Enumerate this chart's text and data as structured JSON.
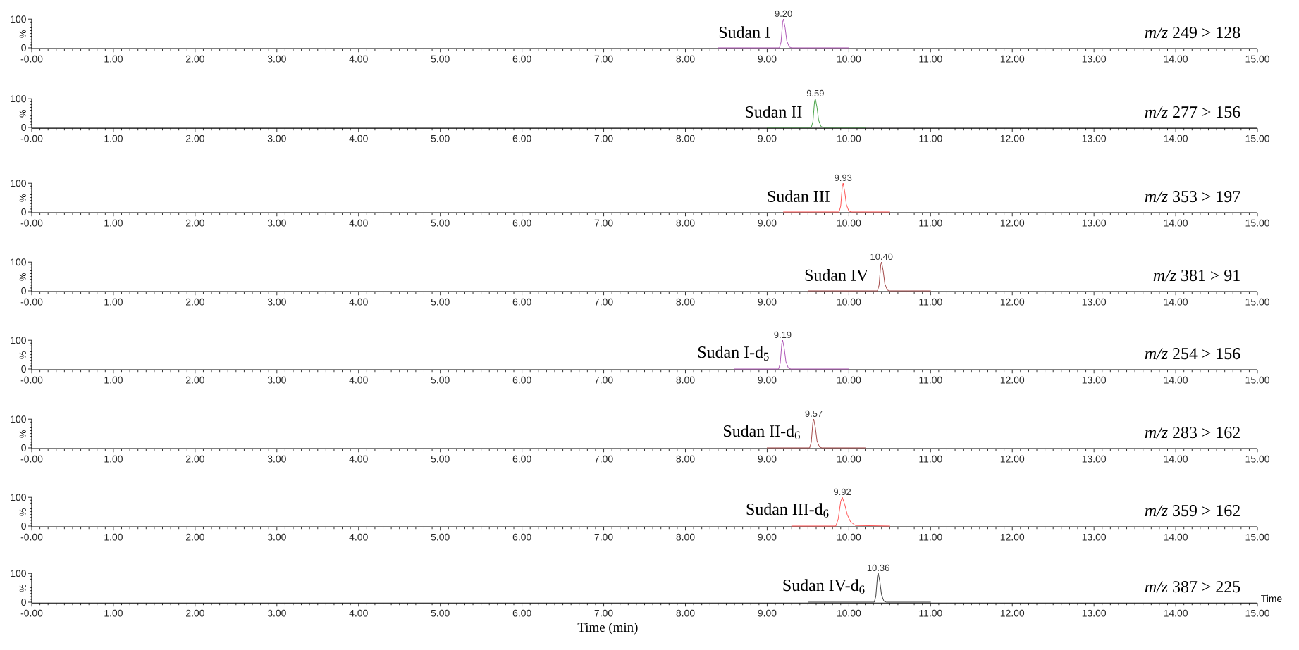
{
  "chart_data": [
    {
      "type": "line",
      "color": "#9b2fa5",
      "x": [
        8.4,
        9.15,
        9.17,
        9.19,
        9.2,
        9.22,
        9.24,
        9.27,
        9.3,
        10.0
      ],
      "values": [
        0,
        0,
        20,
        90,
        100,
        70,
        25,
        3,
        0,
        0
      ],
      "xlim": [
        0,
        15
      ],
      "ylim": [
        -3,
        100
      ],
      "ylabel": "%",
      "yticks": [
        0,
        100
      ],
      "xticks": [
        {
          "value": 0,
          "label": "-0.00"
        },
        {
          "value": 1,
          "label": "1.00"
        },
        {
          "value": 2,
          "label": "2.00"
        },
        {
          "value": 3,
          "label": "3.00"
        },
        {
          "value": 4,
          "label": "4.00"
        },
        {
          "value": 5,
          "label": "5.00"
        },
        {
          "value": 6,
          "label": "6.00"
        },
        {
          "value": 7,
          "label": "7.00"
        },
        {
          "value": 8,
          "label": "8.00"
        },
        {
          "value": 9,
          "label": "9.00"
        },
        {
          "value": 10,
          "label": "10.00"
        },
        {
          "value": 11,
          "label": "11.00"
        },
        {
          "value": 12,
          "label": "12.00"
        },
        {
          "value": 13,
          "label": "13.00"
        },
        {
          "value": 14,
          "label": "14.00"
        },
        {
          "value": 15,
          "label": "15.00"
        }
      ],
      "annotations": [
        {
          "text": "9.20",
          "x": 9.2,
          "y": 100
        },
        "Sudan I",
        "*m/z* 249 > 128"
      ]
    },
    {
      "type": "line",
      "color": "#1f8f1f",
      "x": [
        9.0,
        9.54,
        9.56,
        9.58,
        9.59,
        9.61,
        9.63,
        9.66,
        9.69,
        10.2
      ],
      "values": [
        0,
        0,
        20,
        90,
        100,
        70,
        25,
        3,
        0,
        0
      ],
      "xlim": [
        0,
        15
      ],
      "ylim": [
        -3,
        100
      ],
      "ylabel": "%",
      "yticks": [
        0,
        100
      ],
      "xticks": [
        {
          "value": 0,
          "label": "-0.00"
        },
        {
          "value": 1,
          "label": "1.00"
        },
        {
          "value": 2,
          "label": "2.00"
        },
        {
          "value": 3,
          "label": "3.00"
        },
        {
          "value": 4,
          "label": "4.00"
        },
        {
          "value": 5,
          "label": "5.00"
        },
        {
          "value": 6,
          "label": "6.00"
        },
        {
          "value": 7,
          "label": "7.00"
        },
        {
          "value": 8,
          "label": "8.00"
        },
        {
          "value": 9,
          "label": "9.00"
        },
        {
          "value": 10,
          "label": "10.00"
        },
        {
          "value": 11,
          "label": "11.00"
        },
        {
          "value": 12,
          "label": "12.00"
        },
        {
          "value": 13,
          "label": "13.00"
        },
        {
          "value": 14,
          "label": "14.00"
        },
        {
          "value": 15,
          "label": "15.00"
        }
      ],
      "annotations": [
        {
          "text": "9.59",
          "x": 9.59,
          "y": 100
        },
        "Sudan II",
        "*m/z* 277 > 156"
      ]
    },
    {
      "type": "line",
      "color": "#ff2a2a",
      "x": [
        9.2,
        9.88,
        9.9,
        9.92,
        9.93,
        9.95,
        9.97,
        10.0,
        10.03,
        10.5
      ],
      "values": [
        0,
        0,
        20,
        90,
        100,
        70,
        25,
        3,
        0,
        0
      ],
      "xlim": [
        0,
        15
      ],
      "ylim": [
        -3,
        100
      ],
      "ylabel": "%",
      "yticks": [
        0,
        100
      ],
      "xticks": [
        {
          "value": 0,
          "label": "-0.00"
        },
        {
          "value": 1,
          "label": "1.00"
        },
        {
          "value": 2,
          "label": "2.00"
        },
        {
          "value": 3,
          "label": "3.00"
        },
        {
          "value": 4,
          "label": "4.00"
        },
        {
          "value": 5,
          "label": "5.00"
        },
        {
          "value": 6,
          "label": "6.00"
        },
        {
          "value": 7,
          "label": "7.00"
        },
        {
          "value": 8,
          "label": "8.00"
        },
        {
          "value": 9,
          "label": "9.00"
        },
        {
          "value": 10,
          "label": "10.00"
        },
        {
          "value": 11,
          "label": "11.00"
        },
        {
          "value": 12,
          "label": "12.00"
        },
        {
          "value": 13,
          "label": "13.00"
        },
        {
          "value": 14,
          "label": "14.00"
        },
        {
          "value": 15,
          "label": "15.00"
        }
      ],
      "annotations": [
        {
          "text": "9.93",
          "x": 9.93,
          "y": 100
        },
        "Sudan III",
        "*m/z* 353 > 197"
      ]
    },
    {
      "type": "line",
      "color": "#8b1a1a",
      "x": [
        9.5,
        10.35,
        10.37,
        10.39,
        10.4,
        10.42,
        10.44,
        10.47,
        10.5,
        11.0
      ],
      "values": [
        0,
        0,
        20,
        90,
        100,
        70,
        25,
        3,
        0,
        0
      ],
      "xlim": [
        0,
        15
      ],
      "ylim": [
        -3,
        100
      ],
      "ylabel": "%",
      "yticks": [
        0,
        100
      ],
      "xticks": [
        {
          "value": 0,
          "label": "-0.00"
        },
        {
          "value": 1,
          "label": "1.00"
        },
        {
          "value": 2,
          "label": "2.00"
        },
        {
          "value": 3,
          "label": "3.00"
        },
        {
          "value": 4,
          "label": "4.00"
        },
        {
          "value": 5,
          "label": "5.00"
        },
        {
          "value": 6,
          "label": "6.00"
        },
        {
          "value": 7,
          "label": "7.00"
        },
        {
          "value": 8,
          "label": "8.00"
        },
        {
          "value": 9,
          "label": "9.00"
        },
        {
          "value": 10,
          "label": "10.00"
        },
        {
          "value": 11,
          "label": "11.00"
        },
        {
          "value": 12,
          "label": "12.00"
        },
        {
          "value": 13,
          "label": "13.00"
        },
        {
          "value": 14,
          "label": "14.00"
        },
        {
          "value": 15,
          "label": "15.00"
        }
      ],
      "annotations": [
        {
          "text": "10.40",
          "x": 10.4,
          "y": 100
        },
        "Sudan IV",
        "*m/z* 381 > 91"
      ]
    },
    {
      "type": "line",
      "color": "#9b2fa5",
      "x": [
        8.6,
        9.14,
        9.16,
        9.18,
        9.19,
        9.21,
        9.23,
        9.26,
        9.29,
        10.0
      ],
      "values": [
        0,
        0,
        20,
        90,
        100,
        70,
        25,
        3,
        0,
        0
      ],
      "xlim": [
        0,
        15
      ],
      "ylim": [
        -3,
        100
      ],
      "ylabel": "%",
      "yticks": [
        0,
        100
      ],
      "xticks": [
        {
          "value": 0,
          "label": "-0.00"
        },
        {
          "value": 1,
          "label": "1.00"
        },
        {
          "value": 2,
          "label": "2.00"
        },
        {
          "value": 3,
          "label": "3.00"
        },
        {
          "value": 4,
          "label": "4.00"
        },
        {
          "value": 5,
          "label": "5.00"
        },
        {
          "value": 6,
          "label": "6.00"
        },
        {
          "value": 7,
          "label": "7.00"
        },
        {
          "value": 8,
          "label": "8.00"
        },
        {
          "value": 9,
          "label": "9.00"
        },
        {
          "value": 10,
          "label": "10.00"
        },
        {
          "value": 11,
          "label": "11.00"
        },
        {
          "value": 12,
          "label": "12.00"
        },
        {
          "value": 13,
          "label": "13.00"
        },
        {
          "value": 14,
          "label": "14.00"
        },
        {
          "value": 15,
          "label": "15.00"
        }
      ],
      "annotations": [
        {
          "text": "9.19",
          "x": 9.19,
          "y": 100
        },
        "Sudan I-d$_{5}$",
        "*m/z* 254 > 156"
      ]
    },
    {
      "type": "line",
      "color": "#8b1a1a",
      "x": [
        9.0,
        9.52,
        9.54,
        9.56,
        9.57,
        9.59,
        9.61,
        9.64,
        9.67,
        10.2
      ],
      "values": [
        0,
        0,
        20,
        90,
        100,
        70,
        25,
        3,
        0,
        0
      ],
      "xlim": [
        0,
        15
      ],
      "ylim": [
        -3,
        100
      ],
      "ylabel": "%",
      "yticks": [
        0,
        100
      ],
      "xticks": [
        {
          "value": 0,
          "label": "-0.00"
        },
        {
          "value": 1,
          "label": "1.00"
        },
        {
          "value": 2,
          "label": "2.00"
        },
        {
          "value": 3,
          "label": "3.00"
        },
        {
          "value": 4,
          "label": "4.00"
        },
        {
          "value": 5,
          "label": "5.00"
        },
        {
          "value": 6,
          "label": "6.00"
        },
        {
          "value": 7,
          "label": "7.00"
        },
        {
          "value": 8,
          "label": "8.00"
        },
        {
          "value": 9,
          "label": "9.00"
        },
        {
          "value": 10,
          "label": "10.00"
        },
        {
          "value": 11,
          "label": "11.00"
        },
        {
          "value": 12,
          "label": "12.00"
        },
        {
          "value": 13,
          "label": "13.00"
        },
        {
          "value": 14,
          "label": "14.00"
        },
        {
          "value": 15,
          "label": "15.00"
        }
      ],
      "annotations": [
        {
          "text": "9.57",
          "x": 9.57,
          "y": 100
        },
        "Sudan II-d$_{6}$",
        "*m/z* 283 > 162"
      ]
    },
    {
      "type": "line",
      "color": "#ff2a2a",
      "x": [
        9.3,
        9.84,
        9.87,
        9.9,
        9.92,
        9.95,
        9.98,
        10.02,
        10.08,
        10.5
      ],
      "values": [
        0,
        0,
        25,
        85,
        100,
        75,
        40,
        15,
        2,
        0
      ],
      "xlim": [
        0,
        15
      ],
      "ylim": [
        -3,
        100
      ],
      "ylabel": "%",
      "yticks": [
        0,
        100
      ],
      "xticks": [
        {
          "value": 0,
          "label": "-0.00"
        },
        {
          "value": 1,
          "label": "1.00"
        },
        {
          "value": 2,
          "label": "2.00"
        },
        {
          "value": 3,
          "label": "3.00"
        },
        {
          "value": 4,
          "label": "4.00"
        },
        {
          "value": 5,
          "label": "5.00"
        },
        {
          "value": 6,
          "label": "6.00"
        },
        {
          "value": 7,
          "label": "7.00"
        },
        {
          "value": 8,
          "label": "8.00"
        },
        {
          "value": 9,
          "label": "9.00"
        },
        {
          "value": 10,
          "label": "10.00"
        },
        {
          "value": 11,
          "label": "11.00"
        },
        {
          "value": 12,
          "label": "12.00"
        },
        {
          "value": 13,
          "label": "13.00"
        },
        {
          "value": 14,
          "label": "14.00"
        },
        {
          "value": 15,
          "label": "15.00"
        }
      ],
      "annotations": [
        {
          "text": "9.92",
          "x": 9.92,
          "y": 100
        },
        "Sudan III-d$_{6}$",
        "*m/z* 359 > 162"
      ]
    },
    {
      "type": "line",
      "color": "#111111",
      "x": [
        9.5,
        10.31,
        10.33,
        10.35,
        10.36,
        10.38,
        10.4,
        10.43,
        10.46,
        11.0
      ],
      "values": [
        0,
        0,
        20,
        90,
        100,
        70,
        25,
        3,
        0,
        0
      ],
      "xlim": [
        0,
        15
      ],
      "ylim": [
        -3,
        100
      ],
      "ylabel": "%",
      "xlabel": "Time (min)",
      "yticks": [
        0,
        100
      ],
      "xticks": [
        {
          "value": 0,
          "label": "-0.00"
        },
        {
          "value": 1,
          "label": "1.00"
        },
        {
          "value": 2,
          "label": "2.00"
        },
        {
          "value": 3,
          "label": "3.00"
        },
        {
          "value": 4,
          "label": "4.00"
        },
        {
          "value": 5,
          "label": "5.00"
        },
        {
          "value": 6,
          "label": "6.00"
        },
        {
          "value": 7,
          "label": "7.00"
        },
        {
          "value": 8,
          "label": "8.00"
        },
        {
          "value": 9,
          "label": "9.00"
        },
        {
          "value": 10,
          "label": "10.00"
        },
        {
          "value": 11,
          "label": "11.00"
        },
        {
          "value": 12,
          "label": "12.00"
        },
        {
          "value": 13,
          "label": "13.00"
        },
        {
          "value": 14,
          "label": "14.00"
        },
        {
          "value": 15,
          "label": "15.00"
        }
      ],
      "annotations": [
        {
          "text": "10.36",
          "x": 10.36,
          "y": 100
        },
        "Sudan IV-d$_{6}$",
        "*m/z* 387 > 225",
        "Time"
      ]
    }
  ]
}
